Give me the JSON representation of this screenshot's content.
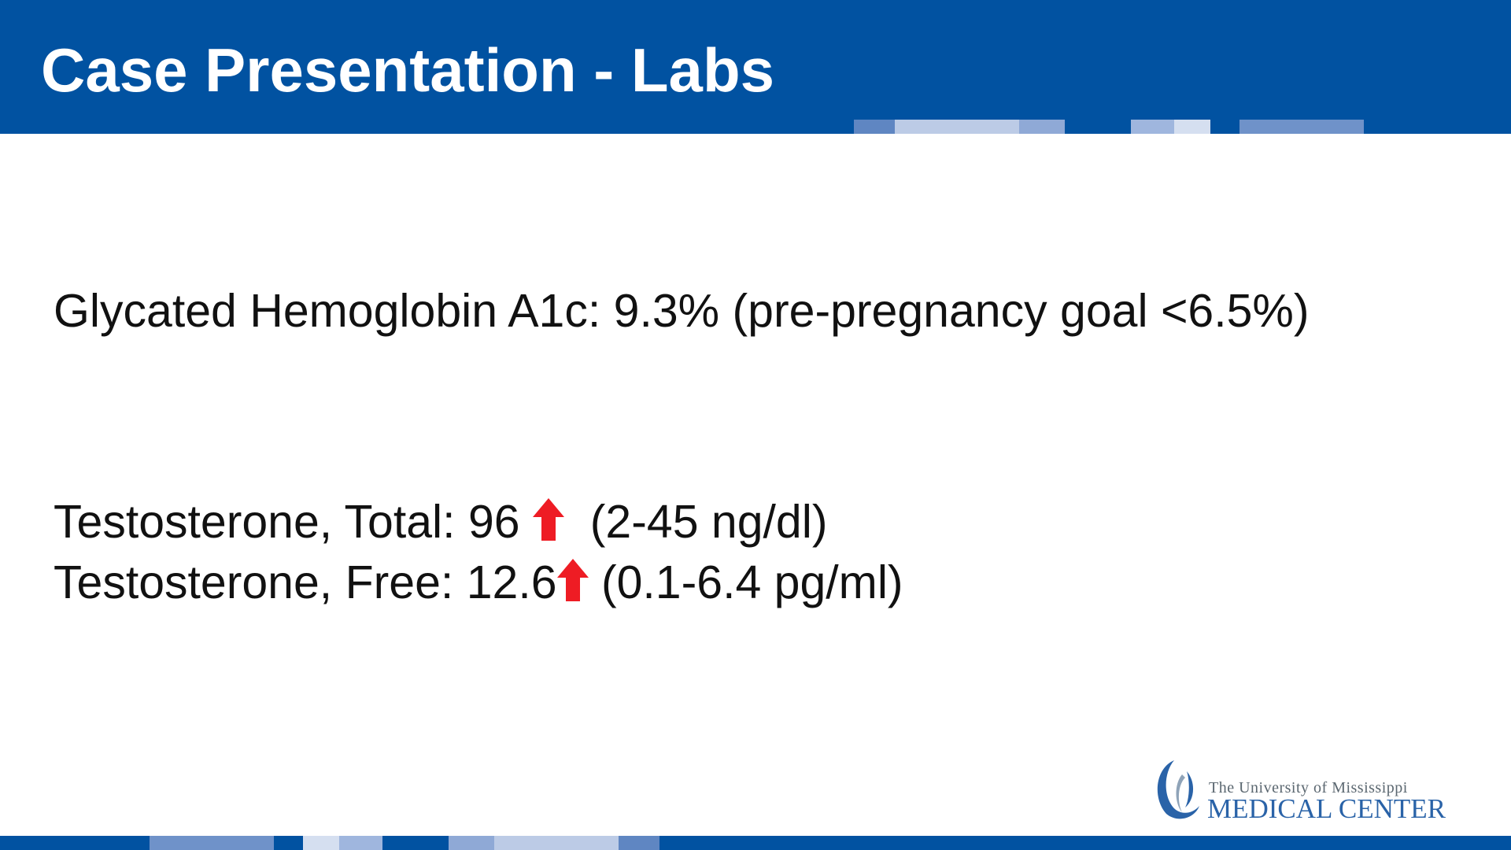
{
  "slide": {
    "title": "Case Presentation - Labs"
  },
  "labs": {
    "a1c": "Glycated Hemoglobin A1c: 9.3% (pre-pregnancy goal <6.5%)",
    "testosterone_total": {
      "label": "Testosterone, Total: 96",
      "flag": "high",
      "range": "(2-45 ng/dl)"
    },
    "testosterone_free": {
      "label": "Testosterone, Free: 12.6",
      "flag": "high",
      "range": "(0.1-6.4 pg/ml)"
    }
  },
  "logo": {
    "line1": "The University of Mississippi",
    "line2": "MEDICAL CENTER",
    "icon": "umc-logo-icon"
  },
  "colors": {
    "brand_blue": "#0152a1",
    "arrow_red": "#ee1c24"
  }
}
